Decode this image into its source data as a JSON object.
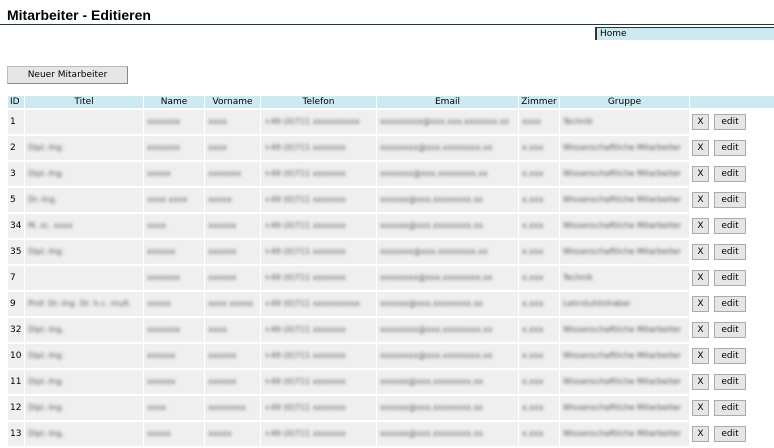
{
  "page": {
    "title": "Mitarbeiter - Editieren",
    "nav_home": "Home",
    "new_button": "Neuer Mitarbeiter"
  },
  "table": {
    "headers": [
      "ID",
      "Titel",
      "Name",
      "Vorname",
      "Telefon",
      "Email",
      "Zimmer",
      "Gruppe",
      ""
    ],
    "delete_label": "X",
    "edit_label": "edit",
    "rows": [
      {
        "id": "1",
        "titel": "",
        "name": "xxxxxxx",
        "vorname": "xxxx",
        "telefon": "+49 (0)711 xxxxxxxxxx",
        "email": "xxxxxxxxx@xxx.xxx.xxxxxxx.xx",
        "zimmer": "xxxx",
        "gruppe": "Technik"
      },
      {
        "id": "2",
        "titel": "Dipl.-Ing.",
        "name": "xxxxxxx",
        "vorname": "xxxx",
        "telefon": "+49 (0)711 xxxxxxx",
        "email": "xxxxxxxx@xxx.xxxxxxxx.xx",
        "zimmer": "x.xxx",
        "gruppe": "Wissenschaftliche Mitarbeiter"
      },
      {
        "id": "3",
        "titel": "Dipl.-Ing.",
        "name": "xxxxx",
        "vorname": "xxxxxxx",
        "telefon": "+49 (0)711 xxxxxxx",
        "email": "xxxxxxx@xxx.xxxxxxxx.xx",
        "zimmer": "x.xxx",
        "gruppe": "Wissenschaftliche Mitarbeiter"
      },
      {
        "id": "5",
        "titel": "Dr.-Ing.",
        "name": "xxxx xxxx",
        "vorname": "xxxxx",
        "telefon": "+49 (0)711 xxxxxxx",
        "email": "xxxxxx@xxx.xxxxxxxx.xx",
        "zimmer": "x.xxx",
        "gruppe": "Wissenschaftliche Mitarbeiter"
      },
      {
        "id": "34",
        "titel": "M. sc. xxxx",
        "name": "xxxx",
        "vorname": "xxxxxx",
        "telefon": "+49 (0)711 xxxxxxx",
        "email": "xxxxxx@xxx.xxxxxxxx.xx",
        "zimmer": "x.xxx",
        "gruppe": "Wissenschaftliche Mitarbeiter"
      },
      {
        "id": "35",
        "titel": "Dipl.-Ing.",
        "name": "xxxxxx",
        "vorname": "xxxxxx",
        "telefon": "+49 (0)711 xxxxxxx",
        "email": "xxxxxxx@xxx.xxxxxxxx.xx",
        "zimmer": "x.xxx",
        "gruppe": "Wissenschaftliche Mitarbeiter"
      },
      {
        "id": "7",
        "titel": "",
        "name": "xxxxxxx",
        "vorname": "xxxxxx",
        "telefon": "+49 (0)711 xxxxxxx",
        "email": "xxxxxxxx@xxx.xxxxxxxx.xx",
        "zimmer": "x.xxx",
        "gruppe": "Technik"
      },
      {
        "id": "9",
        "titel": "Prof. Dr.-Ing. Dr. h.c. mult.",
        "name": "xxxxx",
        "vorname": "xxxx xxxxx",
        "telefon": "+49 (0)711 xxxxxxxxxx",
        "email": "xxxxxx@xxx.xxxxxxxx.xx",
        "zimmer": "x.xxx",
        "gruppe": "Lehrstuhlinhaber"
      },
      {
        "id": "32",
        "titel": "Dipl.-Ing.",
        "name": "xxxxxxx",
        "vorname": "xxxx",
        "telefon": "+49 (0)711 xxxxxxx",
        "email": "xxxxxxxx@xxx.xxxxxxxx.xx",
        "zimmer": "x.xxx",
        "gruppe": "Wissenschaftliche Mitarbeiter"
      },
      {
        "id": "10",
        "titel": "Dipl.-Ing.",
        "name": "xxxxxx",
        "vorname": "xxxxxx",
        "telefon": "+49 (0)711 xxxxxxx",
        "email": "xxxxxxxx@xxx.xxxxxxxx.xx",
        "zimmer": "x.xxx",
        "gruppe": "Wissenschaftliche Mitarbeiter"
      },
      {
        "id": "11",
        "titel": "Dipl.-Ing.",
        "name": "xxxxxx",
        "vorname": "xxxxxx",
        "telefon": "+49 (0)711 xxxxxxx",
        "email": "xxxxxx@xxx.xxxxxxxx.xx",
        "zimmer": "x.xxx",
        "gruppe": "Wissenschaftliche Mitarbeiter"
      },
      {
        "id": "12",
        "titel": "Dipl.-Ing.",
        "name": "xxxx",
        "vorname": "xxxxxxxx",
        "telefon": "+49 (0)711 xxxxxxx",
        "email": "xxxxxx@xxx.xxxxxxxx.xx",
        "zimmer": "x.xxx",
        "gruppe": "Wissenschaftliche Mitarbeiter"
      },
      {
        "id": "13",
        "titel": "Dipl.-Ing.",
        "name": "xxxxx",
        "vorname": "xxxxx",
        "telefon": "+49 (0)711 xxxxxxx",
        "email": "xxxxxx@xxx.xxxxxxxx.xx",
        "zimmer": "x.xxx",
        "gruppe": "Wissenschaftliche Mitarbeiter"
      }
    ]
  }
}
